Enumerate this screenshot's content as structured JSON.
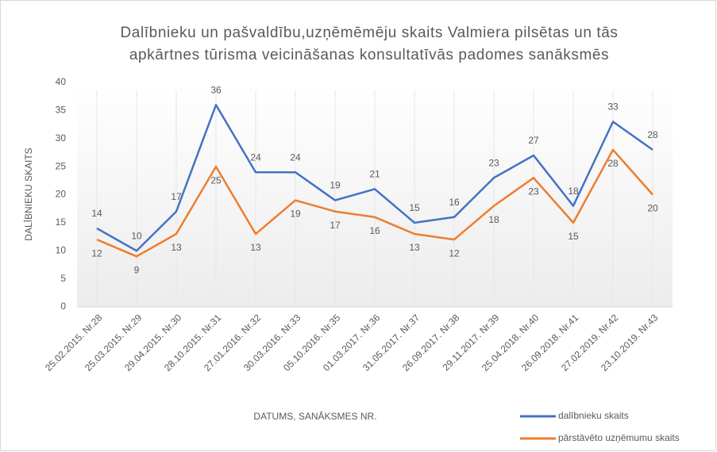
{
  "chart_data": {
    "type": "line",
    "title": [
      "Dalībnieku un pašvaldību,uzņēmēmēju skaits Valmiera pilsētas un tās",
      "apkārtnes tūrisma veicināšanas konsultatīvās padomes sanāksmēs"
    ],
    "y_label": "DALĪBNIEKU SKAITS",
    "x_label": "DATUMS, SANĀKSMES NR.",
    "categories": [
      "25.02.2015. Nr.28",
      "25.03.2015. Nr.29",
      "29.04.2015. Nr.30",
      "28.10.2015. Nr.31",
      "27.01.2016. Nr.32",
      "30.03.2016. Nr.33",
      "05.10.2016. Nr.35",
      "01.03.2017. Nr.36",
      "31.05.2017. Nr.37",
      "26.09.2017. Nr.38",
      "29.11.2017. Nr.39",
      "25.04.2018. Nr.40",
      "26.09.2018. Nr.41",
      "27.02.2019. Nr.42",
      "23.10.2019. Nr.43"
    ],
    "series": [
      {
        "name": "dalībnieku skaits",
        "color": "#4472c4",
        "values": [
          14,
          10,
          17,
          36,
          24,
          24,
          19,
          21,
          15,
          16,
          23,
          27,
          18,
          33,
          28
        ]
      },
      {
        "name": "pārstāvēto uzņēmumu skaits",
        "color": "#ed7d31",
        "values": [
          12,
          9,
          13,
          25,
          13,
          19,
          17,
          16,
          13,
          12,
          18,
          23,
          15,
          28,
          20
        ]
      }
    ],
    "ylim": [
      0,
      40
    ],
    "yticks": [
      0,
      5,
      10,
      15,
      20,
      25,
      30,
      35,
      40
    ],
    "legend": "bottom-right"
  }
}
